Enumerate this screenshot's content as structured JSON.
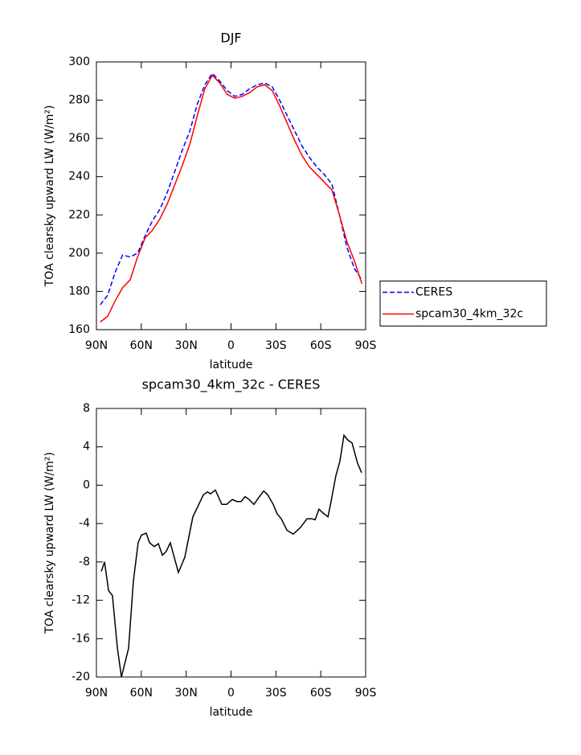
{
  "chart_data": [
    {
      "type": "line",
      "title": "DJF",
      "xlabel": "latitude",
      "ylabel": "TOA clearsky upward LW (W/m²)",
      "x": [
        87.5,
        82.5,
        77.5,
        72.5,
        67.5,
        62.5,
        57.5,
        52.5,
        47.5,
        42.5,
        37.5,
        32.5,
        27.5,
        22.5,
        17.5,
        12.5,
        7.5,
        2.5,
        -2.5,
        -7.5,
        -12.5,
        -17.5,
        -22.5,
        -27.5,
        -32.5,
        -37.5,
        -42.5,
        -47.5,
        -52.5,
        -57.5,
        -62.5,
        -67.5,
        -72.5,
        -77.5,
        -82.5,
        -87.5
      ],
      "series": [
        {
          "name": "CERES",
          "color": "#0000ff",
          "linestyle": "dashed",
          "values": [
            173,
            178,
            190,
            199,
            198,
            200,
            209,
            217,
            223,
            232,
            243,
            254,
            264,
            278,
            288,
            294,
            290,
            285,
            282,
            283,
            286,
            288,
            289,
            287,
            280,
            272,
            264,
            256,
            250,
            245,
            241,
            236,
            220,
            203,
            192,
            186
          ]
        },
        {
          "name": "spcam30_4km_32c",
          "color": "#ff0000",
          "linestyle": "solid",
          "values": [
            164,
            167,
            175,
            182,
            186,
            198,
            208,
            212,
            218,
            226,
            236,
            246,
            257,
            272,
            286,
            293,
            289,
            283,
            281,
            282,
            284,
            287,
            288,
            285,
            277,
            268,
            259,
            251,
            245,
            241,
            237,
            233,
            220,
            206,
            196,
            184
          ]
        }
      ],
      "xlim": [
        90,
        -90
      ],
      "xticks": [
        {
          "value": 90,
          "label": "90N"
        },
        {
          "value": 60,
          "label": "60N"
        },
        {
          "value": 30,
          "label": "30N"
        },
        0,
        {
          "value": -30,
          "label": "30S"
        },
        {
          "value": -60,
          "label": "60S"
        },
        {
          "value": -90,
          "label": "90S"
        }
      ],
      "ylim": [
        160,
        300
      ],
      "yticks": [
        160,
        180,
        200,
        220,
        240,
        260,
        280,
        300
      ],
      "legend": "right"
    },
    {
      "type": "line",
      "title": "spcam30_4km_32c - CERES",
      "xlabel": "latitude",
      "ylabel": "TOA clearsky upward LW (W/m²)",
      "x": [
        86.8,
        84.6,
        81.9,
        79.3,
        76.0,
        73.3,
        68.5,
        65.3,
        62.1,
        59.9,
        56.7,
        54.5,
        51.3,
        48.6,
        45.9,
        43.3,
        40.6,
        35.2,
        30.9,
        25.5,
        18.5,
        15.8,
        13.7,
        10.5,
        6.2,
        2.9,
        -0.8,
        -4.0,
        -6.7,
        -9.4,
        -12.1,
        -15.3,
        -18.5,
        -21.8,
        -24.5,
        -28.2,
        -30.9,
        -33.6,
        -37.4,
        -41.6,
        -46.5,
        -50.8,
        -54.0,
        -56.2,
        -58.8,
        -61.5,
        -64.8,
        -66.9,
        -70.1,
        -72.8,
        -75.5,
        -78.2,
        -80.9,
        -84.6,
        -87.3
      ],
      "series": [
        {
          "color": "#000000",
          "linestyle": "solid",
          "values": [
            -9,
            -8,
            -11,
            -11.5,
            -17,
            -20,
            -17,
            -10,
            -6,
            -5.2,
            -5,
            -6,
            -6.4,
            -6.1,
            -7.3,
            -6.9,
            -6,
            -9.1,
            -7.5,
            -3.3,
            -1,
            -0.7,
            -0.9,
            -0.5,
            -2,
            -2,
            -1.5,
            -1.7,
            -1.7,
            -1.2,
            -1.5,
            -2,
            -1.3,
            -0.6,
            -1,
            -2,
            -3,
            -3.5,
            -4.7,
            -5.1,
            -4.4,
            -3.5,
            -3.5,
            -3.6,
            -2.5,
            -2.9,
            -3.3,
            -1.7,
            1,
            2.5,
            5.2,
            4.7,
            4.4,
            2.3,
            1.3
          ]
        }
      ],
      "xlim": [
        90,
        -90
      ],
      "xticks": [
        {
          "value": 90,
          "label": "90N"
        },
        {
          "value": 60,
          "label": "60N"
        },
        {
          "value": 30,
          "label": "30N"
        },
        0,
        {
          "value": -30,
          "label": "30S"
        },
        {
          "value": -60,
          "label": "60S"
        },
        {
          "value": -90,
          "label": "90S"
        }
      ],
      "ylim": [
        -20,
        8
      ],
      "yticks": [
        -20,
        -16,
        -12,
        -8,
        -4,
        0,
        4,
        8
      ]
    }
  ]
}
